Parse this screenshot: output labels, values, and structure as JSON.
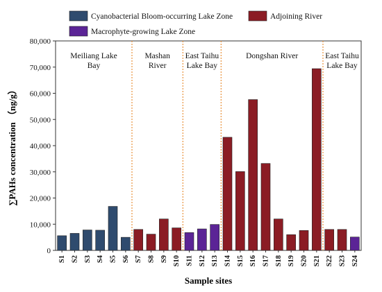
{
  "chart_data": {
    "type": "bar",
    "categories": [
      "S1",
      "S2",
      "S3",
      "S4",
      "S5",
      "S6",
      "S7",
      "S8",
      "S9",
      "S10",
      "S11",
      "S12",
      "S13",
      "S14",
      "S15",
      "S16",
      "S17",
      "S18",
      "S19",
      "S20",
      "S21",
      "S22",
      "S23",
      "S24"
    ],
    "values": [
      5600,
      6500,
      7800,
      7700,
      16800,
      5000,
      8000,
      6200,
      12000,
      8600,
      6800,
      8200,
      9900,
      43200,
      30100,
      57600,
      33200,
      12000,
      6000,
      7600,
      69400,
      8000,
      8000,
      5100
    ],
    "groups": [
      "bloom",
      "bloom",
      "bloom",
      "bloom",
      "bloom",
      "bloom",
      "river",
      "river",
      "river",
      "river",
      "macro",
      "macro",
      "macro",
      "river",
      "river",
      "river",
      "river",
      "river",
      "river",
      "river",
      "river",
      "river",
      "river",
      "macro"
    ],
    "xlabel": "Sample sites",
    "ylabel": "∑PAHs concentration （ng/g）",
    "ylim": [
      0,
      80000
    ],
    "yticks": [
      0,
      10000,
      20000,
      30000,
      40000,
      50000,
      60000,
      70000,
      80000
    ],
    "ytick_labels": [
      "0",
      "10,000",
      "20,000",
      "30,000",
      "40,000",
      "50,000",
      "60,000",
      "70,000",
      "80,000"
    ],
    "legend": [
      {
        "key": "bloom",
        "label": "Cyanobacterial Bloom-occurring Lake Zone",
        "color": "#2f4b6e"
      },
      {
        "key": "river",
        "label": "Adjoining River",
        "color": "#8b1c24"
      },
      {
        "key": "macro",
        "label": "Macrophyte-growing Lake Zone",
        "color": "#5b2496"
      }
    ],
    "legend_placement": "top",
    "separators_after": [
      "S6",
      "S10",
      "S13",
      "S21"
    ],
    "regions": [
      {
        "lines": [
          "Meiliang Lake",
          "Bay"
        ],
        "from": "S1",
        "to": "S6"
      },
      {
        "lines": [
          "Mashan",
          "River"
        ],
        "from": "S7",
        "to": "S10"
      },
      {
        "lines": [
          "East Taihu",
          "Lake Bay"
        ],
        "from": "S11",
        "to": "S13"
      },
      {
        "lines": [
          "Dongshan  River"
        ],
        "from": "S14",
        "to": "S21"
      },
      {
        "lines": [
          "East Taihu",
          "Lake Bay"
        ],
        "from": "S22",
        "to": "S24"
      }
    ],
    "grid": false,
    "separator_color": "#e8913a"
  }
}
